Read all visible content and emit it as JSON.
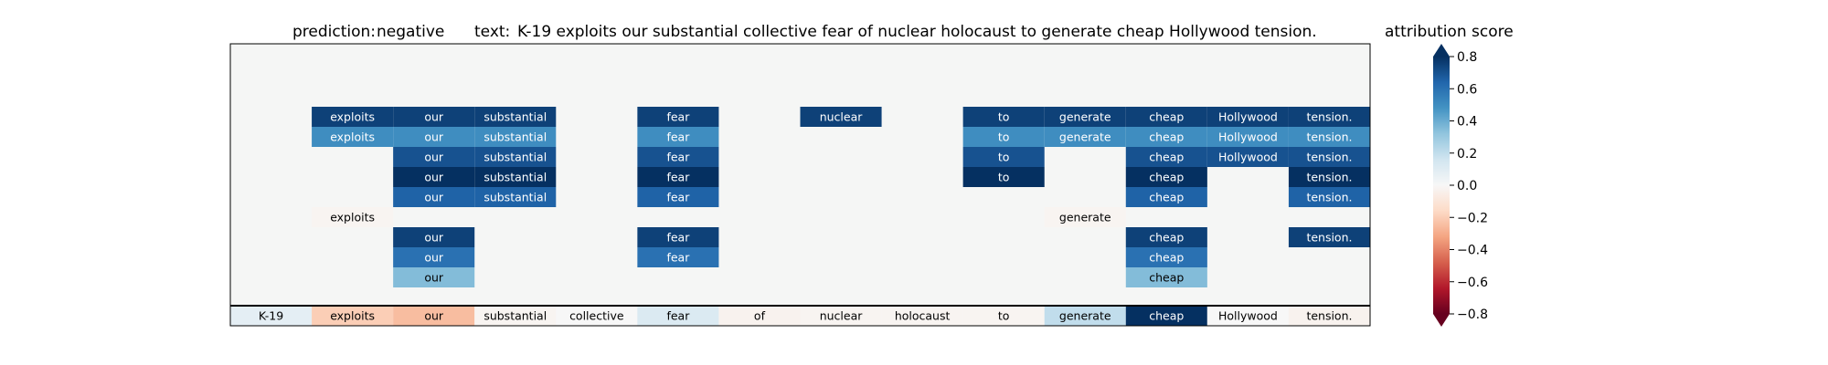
{
  "chart_data": {
    "type": "heatmap",
    "title": {
      "prediction_label": "prediction:",
      "prediction_value": "negative",
      "text_label": "text:",
      "text_value": "K-19 exploits our substantial collective fear of nuclear holocaust to generate cheap Hollywood tension."
    },
    "tokens": [
      "K-19",
      "exploits",
      "our",
      "substantial",
      "collective",
      "fear",
      "of",
      "nuclear",
      "holocaust",
      "to",
      "generate",
      "cheap",
      "Hollywood",
      "tension."
    ],
    "rows": [
      [
        null,
        null,
        null,
        null,
        null,
        null,
        null,
        null,
        null,
        null,
        null,
        null,
        null,
        null
      ],
      [
        null,
        null,
        null,
        null,
        null,
        null,
        null,
        null,
        null,
        null,
        null,
        null,
        null,
        null
      ],
      [
        null,
        null,
        null,
        null,
        null,
        null,
        null,
        null,
        null,
        null,
        null,
        null,
        null,
        null
      ],
      [
        null,
        0.75,
        0.75,
        0.75,
        null,
        0.75,
        null,
        0.75,
        null,
        0.75,
        0.75,
        0.75,
        0.75,
        0.75
      ],
      [
        null,
        0.5,
        0.5,
        0.5,
        null,
        0.5,
        null,
        null,
        null,
        0.5,
        0.5,
        0.5,
        0.5,
        0.5
      ],
      [
        null,
        null,
        0.7,
        0.7,
        null,
        0.7,
        null,
        null,
        null,
        0.7,
        null,
        0.7,
        0.7,
        0.7
      ],
      [
        null,
        null,
        0.95,
        0.95,
        null,
        0.95,
        null,
        null,
        null,
        0.95,
        null,
        0.95,
        null,
        0.95
      ],
      [
        null,
        null,
        0.65,
        0.65,
        null,
        0.65,
        null,
        null,
        null,
        null,
        null,
        0.65,
        null,
        0.65
      ],
      [
        null,
        -0.02,
        null,
        null,
        null,
        null,
        null,
        null,
        null,
        null,
        -0.02,
        null,
        null,
        null
      ],
      [
        null,
        null,
        0.75,
        null,
        null,
        0.75,
        null,
        null,
        null,
        null,
        null,
        0.75,
        null,
        0.75
      ],
      [
        null,
        null,
        0.6,
        null,
        null,
        0.6,
        null,
        null,
        null,
        null,
        null,
        0.6,
        null,
        null
      ],
      [
        null,
        null,
        0.35,
        null,
        null,
        null,
        null,
        null,
        null,
        null,
        null,
        0.35,
        null,
        null
      ]
    ],
    "base_row": [
      0.08,
      -0.2,
      -0.25,
      -0.02,
      0.0,
      0.12,
      -0.03,
      -0.02,
      -0.02,
      -0.02,
      0.2,
      0.8,
      0.0,
      -0.03
    ],
    "colorbar": {
      "label": "attribution score",
      "ticks": [
        "0.8",
        "0.6",
        "0.4",
        "0.2",
        "0.0",
        "−0.2",
        "−0.4",
        "−0.6",
        "−0.8"
      ],
      "range": [
        -0.8,
        0.8
      ],
      "extend": "both"
    },
    "colors": {
      "strong_positive": "#053061",
      "positive": "#2166ac",
      "neutral": "#f7f7f7",
      "negative": "#b2182b",
      "strong_negative": "#67001f",
      "empty_cell": "#f5f6f5"
    }
  }
}
